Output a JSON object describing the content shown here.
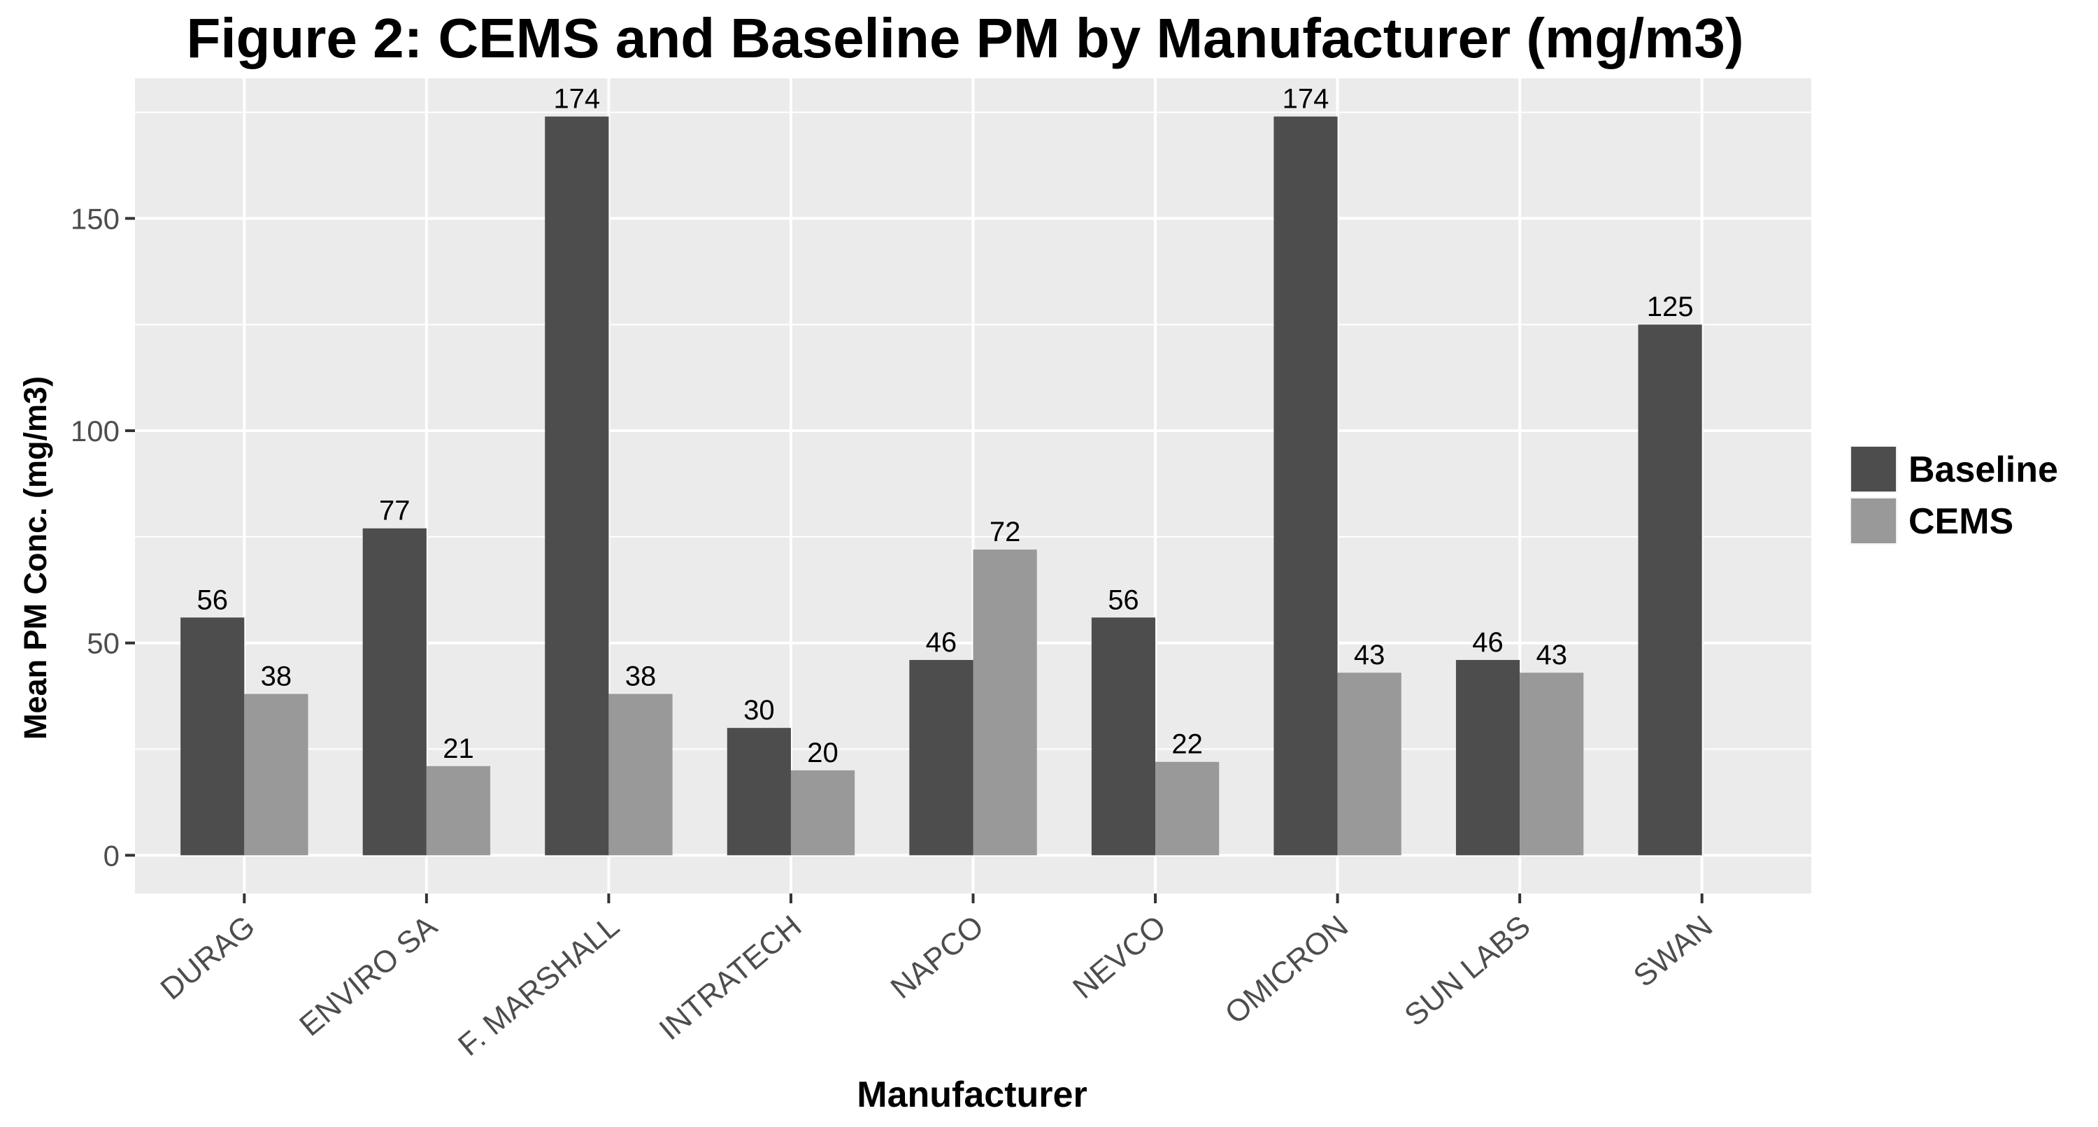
{
  "chart_data": {
    "type": "bar",
    "title": "Figure 2: CEMS and Baseline PM by Manufacturer (mg/m3)",
    "xlabel": "Manufacturer",
    "ylabel": "Mean PM Conc. (mg/m3)",
    "categories": [
      "DURAG",
      "ENVIRO SA",
      "F. MARSHALL",
      "INTRATECH",
      "NAPCO",
      "NEVCO",
      "OMICRON",
      "SUN LABS",
      "SWAN"
    ],
    "series": [
      {
        "name": "Baseline",
        "color": "#4d4d4d",
        "values": [
          56,
          77,
          174,
          30,
          46,
          56,
          174,
          46,
          125
        ]
      },
      {
        "name": "CEMS",
        "color": "#999999",
        "values": [
          38,
          21,
          38,
          20,
          72,
          22,
          43,
          43,
          null
        ]
      }
    ],
    "ylim": [
      -9,
      183
    ],
    "yticks": [
      0,
      50,
      100,
      150
    ],
    "grid": true,
    "legend_position": "right",
    "panel_background": "#ebebeb",
    "grid_color": "#ffffff"
  }
}
